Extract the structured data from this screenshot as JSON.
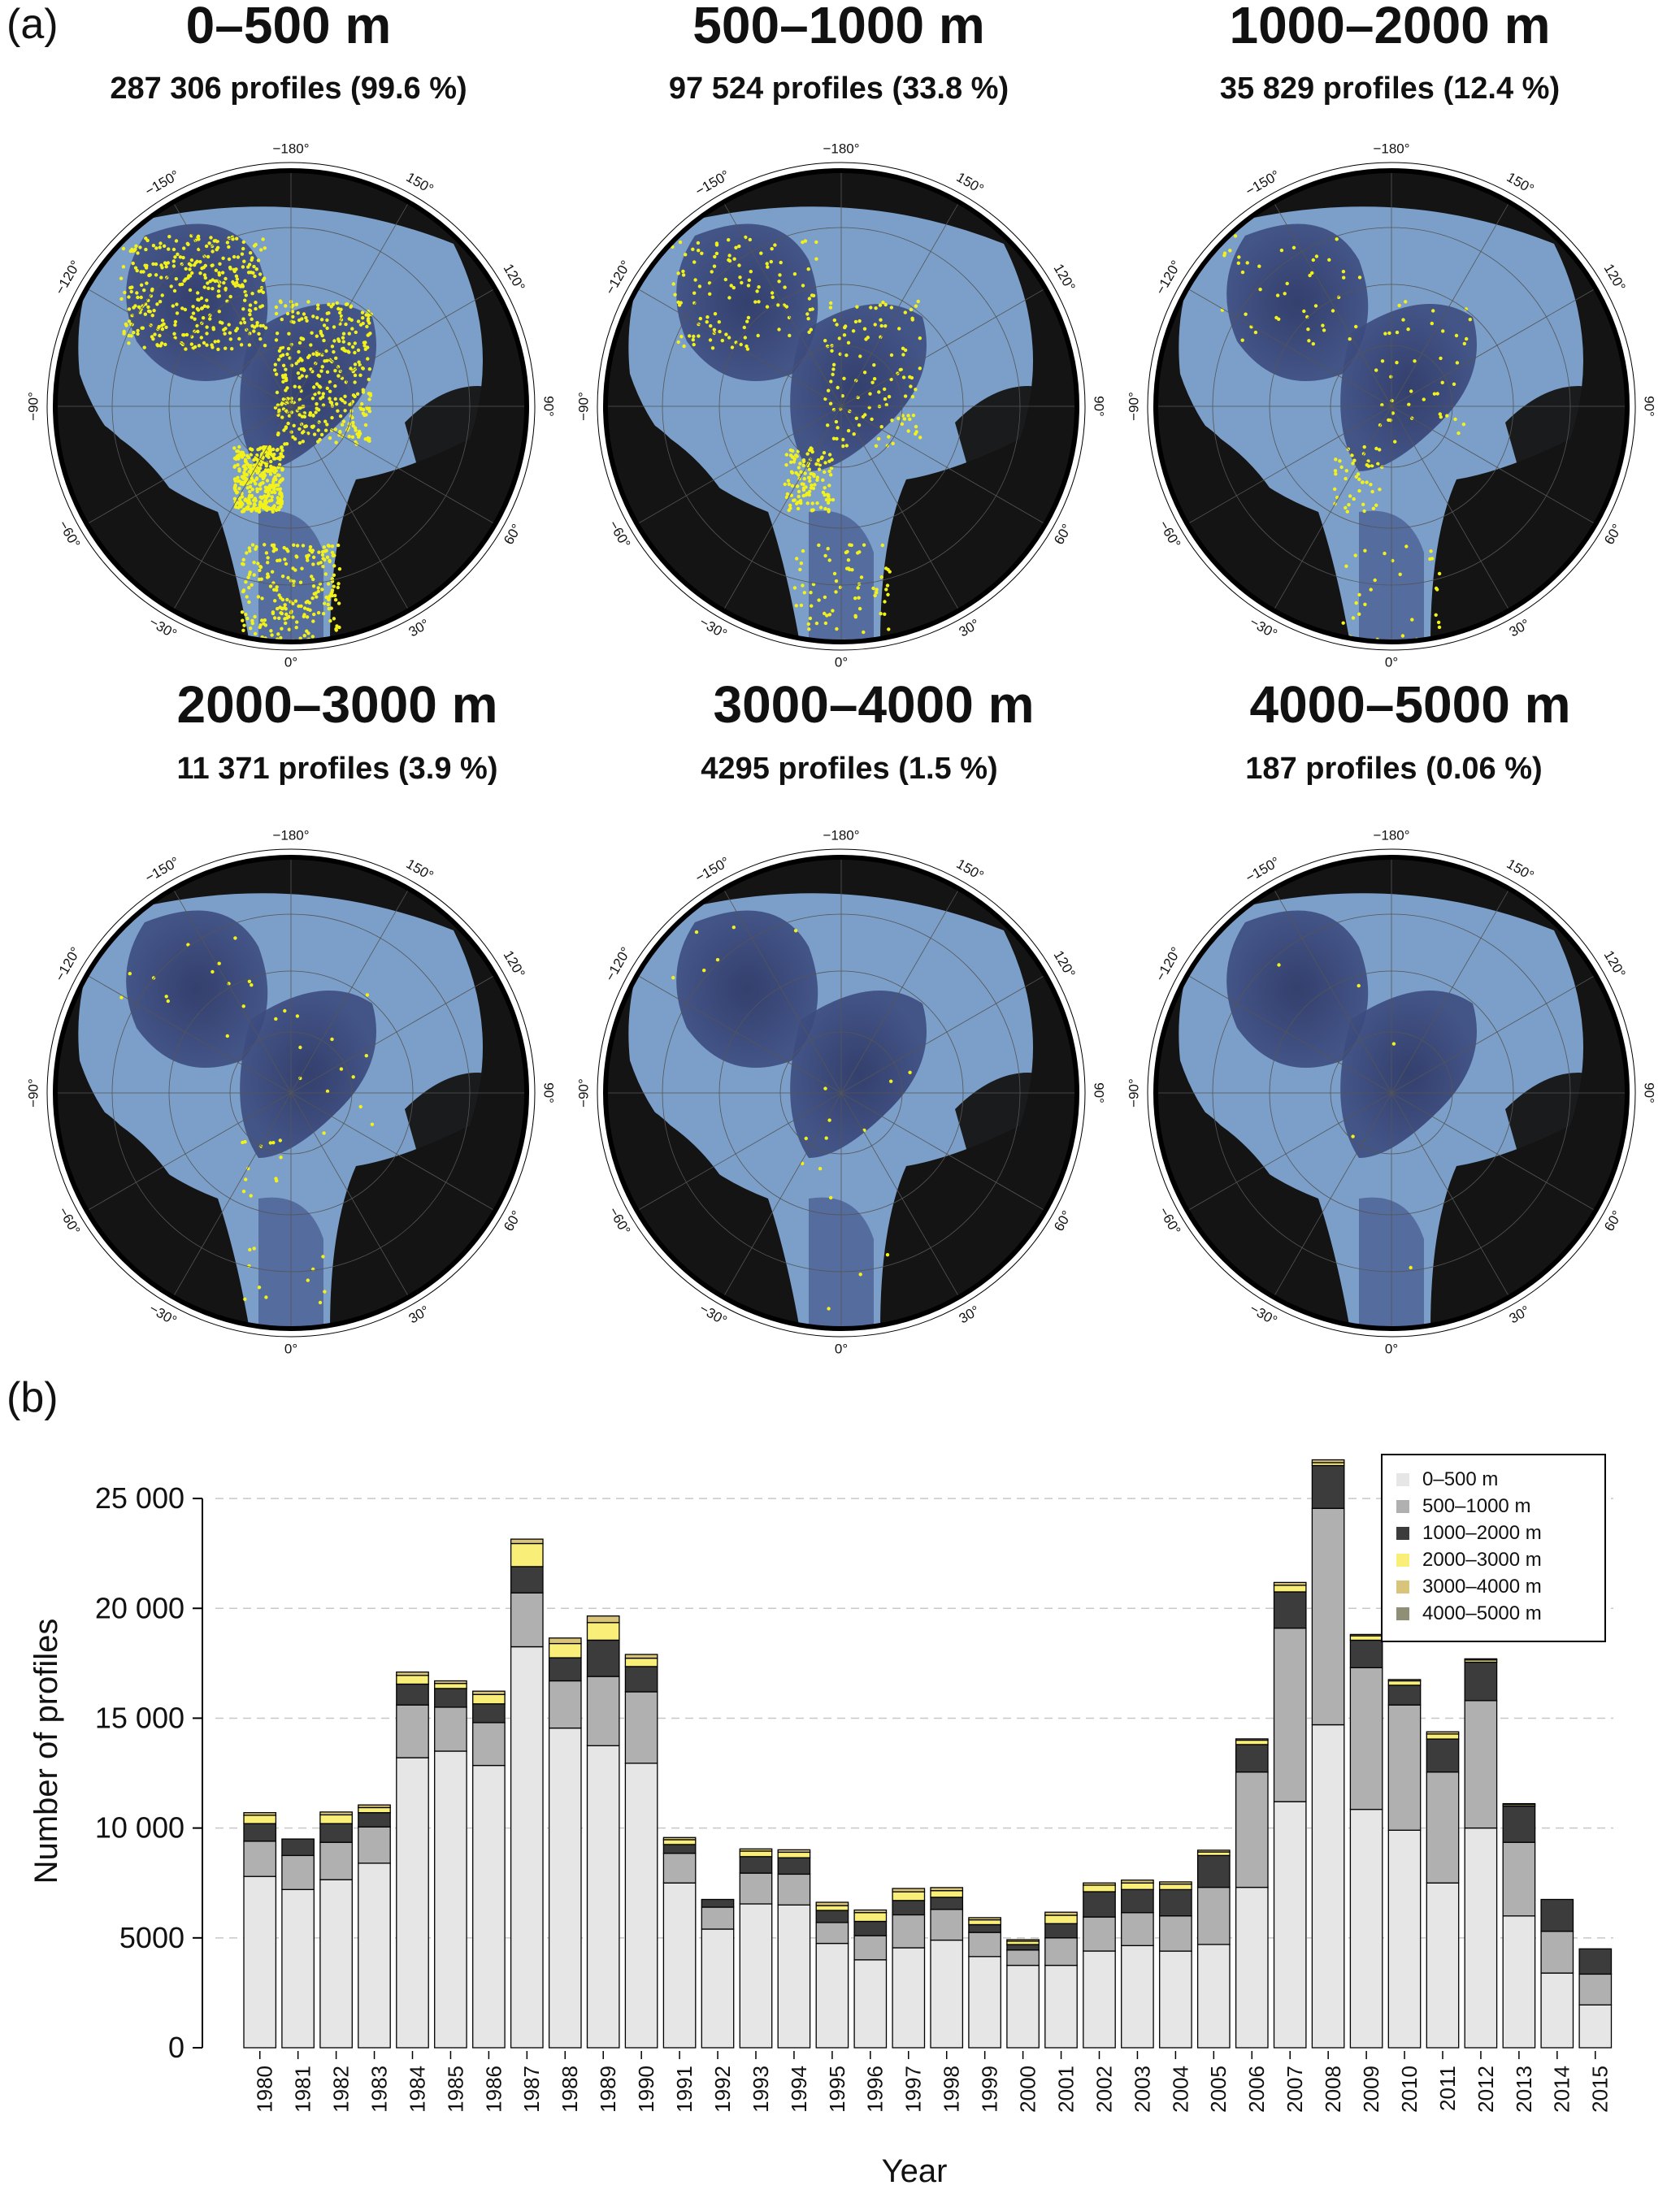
{
  "panel_a_label": "(a)",
  "panel_b_label": "(b)",
  "maps": [
    {
      "title": "0–500 m",
      "subtitle": "287 306 profiles (99.6 %)",
      "density": 1.0
    },
    {
      "title": "500–1000 m",
      "subtitle": "97 524 profiles (33.8 %)",
      "density": 0.34
    },
    {
      "title": "1000–2000 m",
      "subtitle": "35 829 profiles (12.4 %)",
      "density": 0.124
    },
    {
      "title": "2000–3000 m",
      "subtitle": "11 371 profiles (3.9 %)",
      "density": 0.039
    },
    {
      "title": "3000–4000 m",
      "subtitle": "4295 profiles (1.5 %)",
      "density": 0.015
    },
    {
      "title": "4000–5000 m",
      "subtitle": "187 profiles (0.06 %)",
      "density": 0.0006
    }
  ],
  "map_longitude_labels": [
    "−180°",
    "150°",
    "120°",
    "90°",
    "60°",
    "30°",
    "0°",
    "−30°",
    "−60°",
    "−90°",
    "−120°",
    "−150°"
  ],
  "colors": {
    "land": "#141414",
    "ocean_shelf": "#7b9fc9",
    "ocean_deep": "#2c3563",
    "profile_dot": "#f2f21a"
  },
  "chart_data": {
    "type": "bar",
    "stacked": true,
    "xlabel": "Year",
    "ylabel": "Number of profiles",
    "ylim": [
      0,
      27000
    ],
    "yticks": [
      0,
      5000,
      10000,
      15000,
      20000,
      25000
    ],
    "ytick_labels": [
      "0",
      "5000",
      "10 000",
      "15 000",
      "20 000",
      "25 000"
    ],
    "grid": "horizontal dashed",
    "legend_position": "top-right",
    "categories": [
      "1980",
      "1981",
      "1982",
      "1983",
      "1984",
      "1985",
      "1986",
      "1987",
      "1988",
      "1989",
      "1990",
      "1991",
      "1992",
      "1993",
      "1994",
      "1995",
      "1996",
      "1997",
      "1998",
      "1999",
      "2000",
      "2001",
      "2002",
      "2003",
      "2004",
      "2005",
      "2006",
      "2007",
      "2008",
      "2009",
      "2010",
      "2011",
      "2012",
      "2013",
      "2014",
      "2015"
    ],
    "series": [
      {
        "name": "0–500 m",
        "color": "#e6e6e6",
        "values": [
          7800,
          7200,
          7650,
          8400,
          13200,
          13500,
          12850,
          18250,
          14550,
          13750,
          12950,
          7500,
          5400,
          6550,
          6500,
          4750,
          4000,
          4550,
          4900,
          4150,
          3750,
          3750,
          4400,
          4650,
          4400,
          4700,
          7300,
          11200,
          14700,
          10850,
          9900,
          7500,
          10000,
          6000,
          3400,
          1950
        ]
      },
      {
        "name": "500–1000 m",
        "color": "#b0b0b0",
        "values": [
          1600,
          1550,
          1700,
          1650,
          2400,
          2000,
          1950,
          2450,
          2150,
          3150,
          3250,
          1350,
          1000,
          1400,
          1400,
          950,
          1100,
          1500,
          1400,
          1100,
          700,
          1250,
          1550,
          1500,
          1600,
          2600,
          5250,
          7900,
          9850,
          6450,
          5700,
          5050,
          5800,
          3350,
          1900,
          1400
        ]
      },
      {
        "name": "1000–2000 m",
        "color": "#3c3c3c",
        "values": [
          800,
          750,
          850,
          650,
          950,
          850,
          850,
          1200,
          1050,
          1650,
          1150,
          400,
          350,
          750,
          750,
          550,
          650,
          650,
          550,
          350,
          250,
          650,
          1150,
          1050,
          1200,
          1450,
          1250,
          1650,
          1950,
          1250,
          900,
          1500,
          1750,
          1650,
          1450,
          1150
        ]
      },
      {
        "name": "2000–3000 m",
        "color": "#f8ee78",
        "values": [
          380,
          0,
          400,
          230,
          400,
          230,
          430,
          1050,
          650,
          800,
          380,
          220,
          0,
          250,
          250,
          220,
          400,
          400,
          300,
          220,
          150,
          380,
          300,
          300,
          250,
          160,
          200,
          300,
          130,
          200,
          200,
          230,
          100,
          70,
          0,
          0
        ]
      },
      {
        "name": "3000–4000 m",
        "color": "#d8c47a",
        "values": [
          120,
          0,
          130,
          120,
          150,
          120,
          150,
          200,
          250,
          300,
          170,
          100,
          0,
          100,
          110,
          150,
          120,
          150,
          140,
          100,
          70,
          140,
          100,
          130,
          100,
          80,
          60,
          130,
          130,
          60,
          60,
          100,
          50,
          40,
          0,
          0
        ]
      },
      {
        "name": "4000–5000 m",
        "color": "#8f8f77",
        "values": [
          0,
          0,
          0,
          0,
          0,
          0,
          0,
          0,
          0,
          0,
          0,
          0,
          0,
          0,
          0,
          0,
          0,
          0,
          0,
          0,
          0,
          0,
          0,
          0,
          0,
          0,
          0,
          0,
          0,
          0,
          0,
          0,
          0,
          0,
          0,
          0
        ]
      }
    ]
  }
}
